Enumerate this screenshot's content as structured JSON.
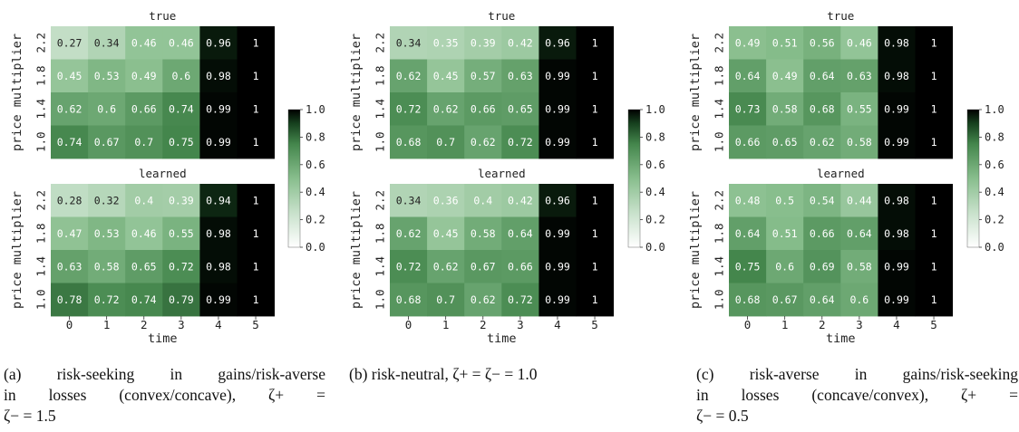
{
  "chart_data": [
    {
      "type": "heatmap",
      "panel": "a",
      "caption": "(a) risk-seeking in gains/risk-averse in losses (convex/concave), ζ+ = ζ− = 1.5",
      "caption_lines": [
        "(a) risk-seeking in gains/risk-averse",
        "in losses (convex/concave), ζ+ =",
        "ζ− = 1.5"
      ],
      "x_label": "time",
      "y_label": "price multiplier",
      "x_ticks": [
        "0",
        "1",
        "2",
        "3",
        "4",
        "5"
      ],
      "y_ticks": [
        "2.2",
        "1.8",
        "1.4",
        "1.0"
      ],
      "colorbar": {
        "min": 0.0,
        "max": 1.0,
        "ticks": [
          "1.0",
          "0.8",
          "0.6",
          "0.4",
          "0.2",
          "0.0"
        ]
      },
      "subplots": [
        {
          "title": "true",
          "rows": [
            [
              "0.27",
              "0.34",
              "0.46",
              "0.46",
              "0.96",
              "1"
            ],
            [
              "0.45",
              "0.53",
              "0.49",
              "0.6",
              "0.98",
              "1"
            ],
            [
              "0.62",
              "0.6",
              "0.66",
              "0.74",
              "0.99",
              "1"
            ],
            [
              "0.74",
              "0.67",
              "0.7",
              "0.75",
              "0.99",
              "1"
            ]
          ]
        },
        {
          "title": "learned",
          "rows": [
            [
              "0.28",
              "0.32",
              "0.4",
              "0.39",
              "0.94",
              "1"
            ],
            [
              "0.47",
              "0.53",
              "0.46",
              "0.55",
              "0.98",
              "1"
            ],
            [
              "0.63",
              "0.58",
              "0.65",
              "0.72",
              "0.98",
              "1"
            ],
            [
              "0.78",
              "0.72",
              "0.74",
              "0.79",
              "0.99",
              "1"
            ]
          ]
        }
      ]
    },
    {
      "type": "heatmap",
      "panel": "b",
      "caption": "(b) risk-neutral, ζ+ = ζ− = 1.0",
      "caption_lines": [
        "(b) risk-neutral, ζ+ = ζ− = 1.0"
      ],
      "x_label": "time",
      "y_label": "price multiplier",
      "x_ticks": [
        "0",
        "1",
        "2",
        "3",
        "4",
        "5"
      ],
      "y_ticks": [
        "2.2",
        "1.8",
        "1.4",
        "1.0"
      ],
      "colorbar": {
        "min": 0.0,
        "max": 1.0,
        "ticks": [
          "1.0",
          "0.8",
          "0.6",
          "0.4",
          "0.2",
          "0.0"
        ]
      },
      "subplots": [
        {
          "title": "true",
          "rows": [
            [
              "0.34",
              "0.35",
              "0.39",
              "0.42",
              "0.96",
              "1"
            ],
            [
              "0.62",
              "0.45",
              "0.57",
              "0.63",
              "0.99",
              "1"
            ],
            [
              "0.72",
              "0.62",
              "0.66",
              "0.65",
              "0.99",
              "1"
            ],
            [
              "0.68",
              "0.7",
              "0.62",
              "0.72",
              "0.99",
              "1"
            ]
          ]
        },
        {
          "title": "learned",
          "rows": [
            [
              "0.34",
              "0.36",
              "0.4",
              "0.42",
              "0.96",
              "1"
            ],
            [
              "0.62",
              "0.45",
              "0.58",
              "0.64",
              "0.99",
              "1"
            ],
            [
              "0.72",
              "0.62",
              "0.67",
              "0.66",
              "0.99",
              "1"
            ],
            [
              "0.68",
              "0.7",
              "0.62",
              "0.72",
              "0.99",
              "1"
            ]
          ]
        }
      ]
    },
    {
      "type": "heatmap",
      "panel": "c",
      "caption": "(c) risk-averse in gains/risk-seeking in losses (concave/convex), ζ+ = ζ− = 0.5",
      "caption_lines": [
        "(c) risk-averse in gains/risk-seeking",
        "in losses (concave/convex), ζ+ =",
        "ζ− = 0.5"
      ],
      "x_label": "time",
      "y_label": "price multiplier",
      "x_ticks": [
        "0",
        "1",
        "2",
        "3",
        "4",
        "5"
      ],
      "y_ticks": [
        "2.2",
        "1.8",
        "1.4",
        "1.0"
      ],
      "colorbar": {
        "min": 0.0,
        "max": 1.0,
        "ticks": [
          "1.0",
          "0.8",
          "0.6",
          "0.4",
          "0.2",
          "0.0"
        ]
      },
      "subplots": [
        {
          "title": "true",
          "rows": [
            [
              "0.49",
              "0.51",
              "0.56",
              "0.46",
              "0.98",
              "1"
            ],
            [
              "0.64",
              "0.49",
              "0.64",
              "0.63",
              "0.98",
              "1"
            ],
            [
              "0.73",
              "0.58",
              "0.68",
              "0.55",
              "0.99",
              "1"
            ],
            [
              "0.66",
              "0.65",
              "0.62",
              "0.58",
              "0.99",
              "1"
            ]
          ]
        },
        {
          "title": "learned",
          "rows": [
            [
              "0.48",
              "0.5",
              "0.54",
              "0.44",
              "0.98",
              "1"
            ],
            [
              "0.64",
              "0.51",
              "0.66",
              "0.64",
              "0.98",
              "1"
            ],
            [
              "0.75",
              "0.6",
              "0.69",
              "0.58",
              "0.99",
              "1"
            ],
            [
              "0.68",
              "0.67",
              "0.64",
              "0.6",
              "0.99",
              "1"
            ]
          ]
        }
      ]
    }
  ]
}
